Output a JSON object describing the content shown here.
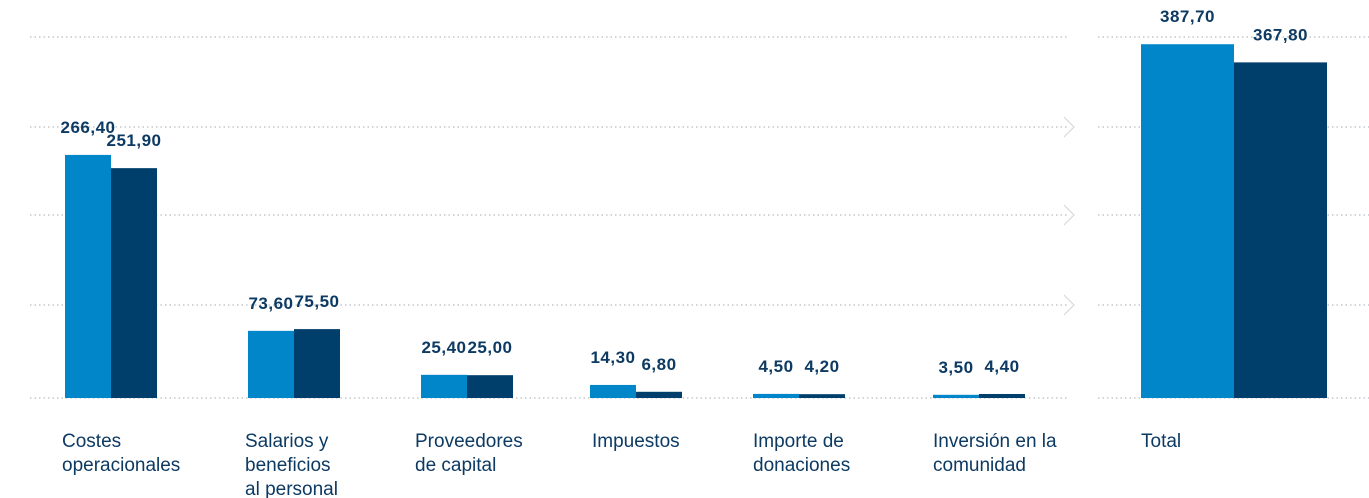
{
  "chart_data": {
    "type": "bar",
    "categories": [
      "Costes operacionales",
      "Salarios y beneficios al personal",
      "Proveedores de capital",
      "Impuestos",
      "Importe de donaciones",
      "Inversión en la comunidad",
      "Total"
    ],
    "series": [
      {
        "color": "#0086c9",
        "values": [
          266.4,
          73.6,
          25.4,
          14.3,
          4.5,
          3.5,
          387.7
        ],
        "value_labels": [
          "266,40",
          "73,60",
          "25,40",
          "14,30",
          "4,50",
          "3,50",
          "387,70"
        ]
      },
      {
        "color": "#003f6b",
        "values": [
          251.9,
          75.5,
          25.0,
          6.8,
          4.2,
          4.4,
          367.8
        ],
        "value_labels": [
          "251,90",
          "75,50",
          "25,00",
          "6,80",
          "4,20",
          "4,40",
          "367,80"
        ]
      }
    ],
    "ylim": [
      0,
      400
    ]
  }
}
